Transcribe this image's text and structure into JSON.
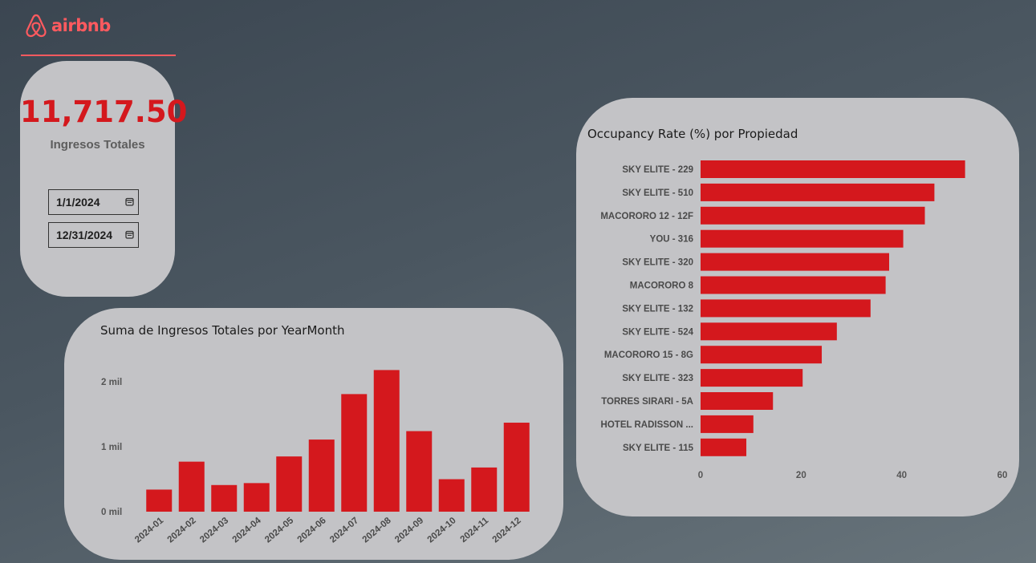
{
  "brand": {
    "name": "airbnb",
    "color": "#ff5a5f",
    "icon": "airbnb-belo-icon"
  },
  "kpi": {
    "value": "11,717.50",
    "label": "Ingresos Totales",
    "date_start": "1/1/2024",
    "date_end": "12/31/2024",
    "calendar_icon": "calendar-icon"
  },
  "colors": {
    "bar": "#d4181d",
    "card": "#c3c3c6",
    "accent": "#ff5a5f"
  },
  "revenue_chart": {
    "title": "Suma de Ingresos Totales por YearMonth",
    "chart_data": {
      "type": "bar",
      "categories": [
        "2024-01",
        "2024-02",
        "2024-03",
        "2024-04",
        "2024-05",
        "2024-06",
        "2024-07",
        "2024-08",
        "2024-09",
        "2024-10",
        "2024-11",
        "2024-12"
      ],
      "values": [
        340,
        770,
        410,
        440,
        850,
        1110,
        1810,
        2180,
        1240,
        500,
        680,
        1370
      ],
      "yticks": [
        0,
        1000,
        2000
      ],
      "yticklabels": [
        "0 mil",
        "1 mil",
        "2 mil"
      ],
      "ylim": [
        0,
        2000
      ],
      "grid": false
    }
  },
  "occupancy_chart": {
    "title": "Occupancy Rate (%) por Propiedad",
    "chart_data": {
      "type": "bar",
      "orientation": "horizontal",
      "categories": [
        "SKY ELITE - 229",
        "SKY ELITE - 510",
        "MACORORO 12 - 12F",
        "YOU - 316",
        "SKY ELITE - 320",
        "MACORORO 8",
        "SKY ELITE - 132",
        "SKY ELITE - 524",
        "MACORORO 15 - 8G",
        "SKY ELITE - 323",
        "TORRES SIRARI - 5A",
        "HOTEL RADISSON ...",
        "SKY ELITE - 115"
      ],
      "values": [
        52.6,
        46.5,
        44.6,
        40.3,
        37.5,
        36.8,
        33.8,
        27.1,
        24.1,
        20.3,
        14.4,
        10.5,
        9.1
      ],
      "xticks": [
        0,
        20,
        40,
        60
      ],
      "xlim": [
        0,
        60
      ],
      "grid": false
    }
  }
}
